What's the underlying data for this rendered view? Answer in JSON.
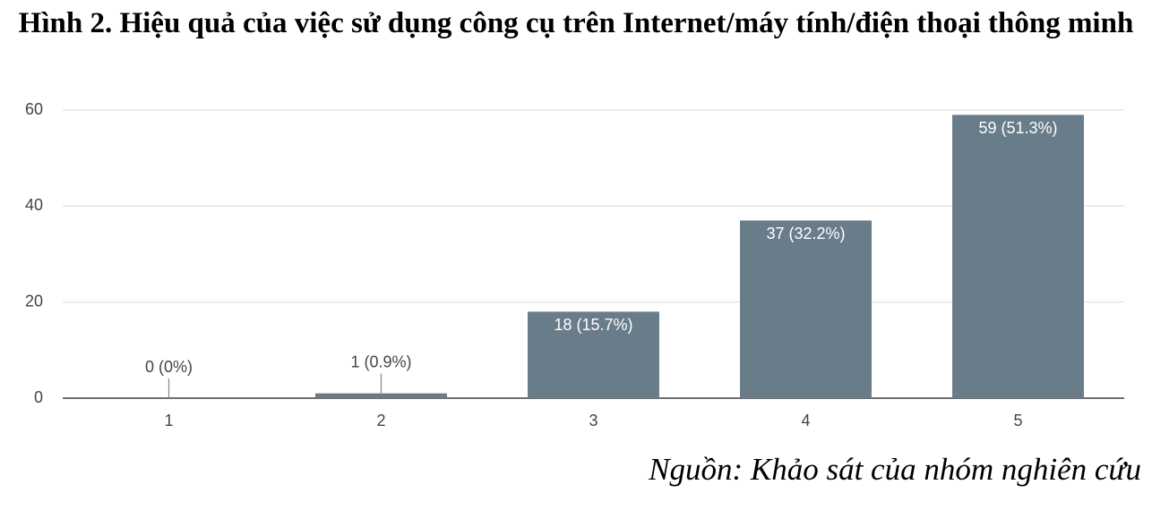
{
  "chart_data": {
    "type": "bar",
    "title": "Hình 2. Hiệu quả của việc sử dụng công cụ trên Internet/máy tính/điện thoại thông minh",
    "source": "Nguồn: Khảo sát của nhóm nghiên cứu",
    "categories": [
      "1",
      "2",
      "3",
      "4",
      "5"
    ],
    "values": [
      0,
      1,
      18,
      37,
      59
    ],
    "value_labels": [
      "0 (0%)",
      "1 (0.9%)",
      "18 (15.7%)",
      "37 (32.2%)",
      "59 (51.3%)"
    ],
    "color": "#687c89",
    "ylim": [
      0,
      60
    ],
    "yticks": [
      0,
      20,
      40,
      60
    ],
    "grid": true
  }
}
